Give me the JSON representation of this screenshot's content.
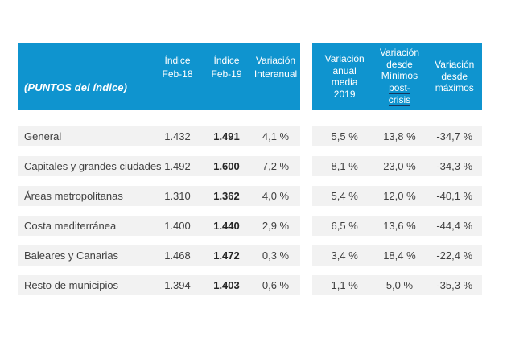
{
  "colors": {
    "header_bg": "#0f94cf",
    "row_bg": "#f2f2f2",
    "text": "#404040",
    "underline": "#17365d"
  },
  "table": {
    "corner_label": "(PUNTOS del índice)",
    "left_headers": [
      {
        "lines": [
          "Índice",
          "Feb-18"
        ]
      },
      {
        "lines": [
          "Índice",
          "Feb-19"
        ]
      },
      {
        "lines": [
          "Variación",
          "Interanual"
        ]
      }
    ],
    "right_headers": [
      {
        "lines": [
          "Variación",
          "anual",
          "media",
          "2019"
        ]
      },
      {
        "lines": [
          "Variación",
          "desde",
          "Mínimos",
          "post-",
          "crisis"
        ]
      },
      {
        "lines": [
          "Variación",
          "desde",
          "máximos"
        ]
      }
    ],
    "rows": [
      {
        "label": "General",
        "feb18": "1.432",
        "feb19": "1.491",
        "var_interanual": "4,1 %",
        "var_anual_media": "5,5 %",
        "var_desde_minimos": "13,8 %",
        "var_desde_maximos": "-34,7 %"
      },
      {
        "label": "Capitales y grandes ciudades",
        "feb18": "1.492",
        "feb19": "1.600",
        "var_interanual": "7,2 %",
        "var_anual_media": "8,1 %",
        "var_desde_minimos": "23,0 %",
        "var_desde_maximos": "-34,3 %"
      },
      {
        "label": "Áreas metropolitanas",
        "feb18": "1.310",
        "feb19": "1.362",
        "var_interanual": "4,0 %",
        "var_anual_media": "5,4 %",
        "var_desde_minimos": "12,0 %",
        "var_desde_maximos": "-40,1 %"
      },
      {
        "label": "Costa mediterránea",
        "feb18": "1.400",
        "feb19": "1.440",
        "var_interanual": "2,9 %",
        "var_anual_media": "6,5 %",
        "var_desde_minimos": "13,6 %",
        "var_desde_maximos": "-44,4 %"
      },
      {
        "label": "Baleares y Canarias",
        "feb18": "1.468",
        "feb19": "1.472",
        "var_interanual": "0,3 %",
        "var_anual_media": "3,4 %",
        "var_desde_minimos": "18,4 %",
        "var_desde_maximos": "-22,4 %"
      },
      {
        "label": "Resto de municipios",
        "feb18": "1.394",
        "feb19": "1.403",
        "var_interanual": "0,6 %",
        "var_anual_media": "1,1 %",
        "var_desde_minimos": "5,0 %",
        "var_desde_maximos": "-35,3 %"
      }
    ]
  },
  "chart_data": {
    "type": "table",
    "title": "(PUNTOS del índice)",
    "columns": [
      "Índice Feb-18",
      "Índice Feb-19",
      "Variación Interanual",
      "Variación anual media 2019",
      "Variación desde Mínimos post-crisis",
      "Variación desde máximos"
    ],
    "rows": [
      {
        "category": "General",
        "indice_feb18": 1432,
        "indice_feb19": 1491,
        "variacion_interanual_pct": 4.1,
        "variacion_anual_media_2019_pct": 5.5,
        "variacion_desde_minimos_pct": 13.8,
        "variacion_desde_maximos_pct": -34.7
      },
      {
        "category": "Capitales y grandes ciudades",
        "indice_feb18": 1492,
        "indice_feb19": 1600,
        "variacion_interanual_pct": 7.2,
        "variacion_anual_media_2019_pct": 8.1,
        "variacion_desde_minimos_pct": 23.0,
        "variacion_desde_maximos_pct": -34.3
      },
      {
        "category": "Áreas metropolitanas",
        "indice_feb18": 1310,
        "indice_feb19": 1362,
        "variacion_interanual_pct": 4.0,
        "variacion_anual_media_2019_pct": 5.4,
        "variacion_desde_minimos_pct": 12.0,
        "variacion_desde_maximos_pct": -40.1
      },
      {
        "category": "Costa mediterránea",
        "indice_feb18": 1400,
        "indice_feb19": 1440,
        "variacion_interanual_pct": 2.9,
        "variacion_anual_media_2019_pct": 6.5,
        "variacion_desde_minimos_pct": 13.6,
        "variacion_desde_maximos_pct": -44.4
      },
      {
        "category": "Baleares y Canarias",
        "indice_feb18": 1468,
        "indice_feb19": 1472,
        "variacion_interanual_pct": 0.3,
        "variacion_anual_media_2019_pct": 3.4,
        "variacion_desde_minimos_pct": 18.4,
        "variacion_desde_maximos_pct": -22.4
      },
      {
        "category": "Resto de municipios",
        "indice_feb18": 1394,
        "indice_feb19": 1403,
        "variacion_interanual_pct": 0.6,
        "variacion_anual_media_2019_pct": 1.1,
        "variacion_desde_minimos_pct": 5.0,
        "variacion_desde_maximos_pct": -35.3
      }
    ]
  }
}
